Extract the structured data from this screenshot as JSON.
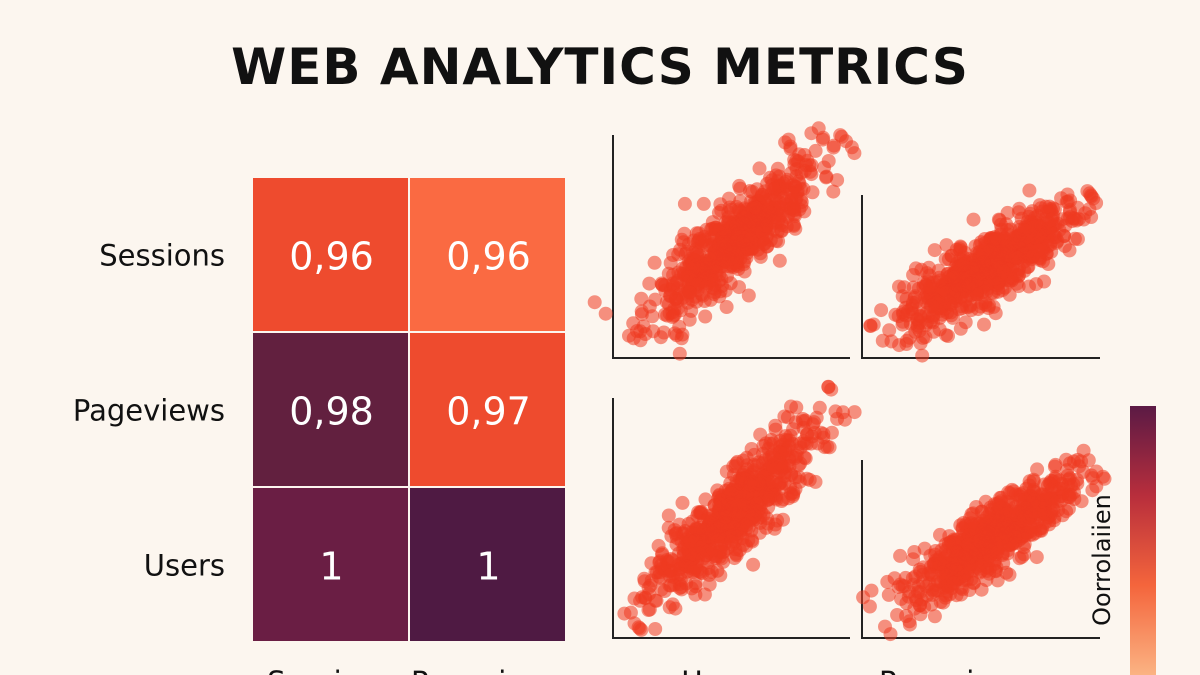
{
  "header": {
    "title": "WEB ANALYTICS METRICS"
  },
  "colors": {
    "background": "#fcf6ef",
    "scatter_point": "#ee3a20",
    "axis": "#222222"
  },
  "chart_data": [
    {
      "type": "heatmap",
      "title": "WEB ANALYTICS METRICS",
      "rows": [
        "Sessions",
        "Pageviews",
        "Users"
      ],
      "columns": [
        "Sessions",
        "Pageviews"
      ],
      "values": [
        [
          0.96,
          0.96
        ],
        [
          0.98,
          0.97
        ],
        [
          1,
          1
        ]
      ],
      "cell_labels": [
        [
          "0,96",
          "0,96"
        ],
        [
          "0,98",
          "0,97"
        ],
        [
          "1",
          "1"
        ]
      ],
      "cell_colors": [
        [
          "#ee4b2e",
          "#fa6a42"
        ],
        [
          "#62203f",
          "#ee4b2e"
        ],
        [
          "#6a1e44",
          "#4f1a43"
        ]
      ],
      "colorbar": {
        "label": "Oorrolaiien",
        "colors_top_to_bottom": [
          "#5b1a45",
          "#b82e3c",
          "#f4653c",
          "#fbb383"
        ]
      }
    },
    {
      "type": "scatter",
      "panels": [
        {
          "row": 1,
          "col": 1,
          "xlabel": "",
          "ylabel": ""
        },
        {
          "row": 1,
          "col": 2,
          "xlabel": "",
          "ylabel": ""
        },
        {
          "row": 2,
          "col": 1,
          "xlabel": "Users",
          "ylabel": ""
        },
        {
          "row": 2,
          "col": 2,
          "xlabel": "Pageviews",
          "ylabel": ""
        }
      ]
    }
  ],
  "column_labels_visible": [
    "Sessions",
    "Pageviews",
    "Users",
    "Pageviews"
  ]
}
